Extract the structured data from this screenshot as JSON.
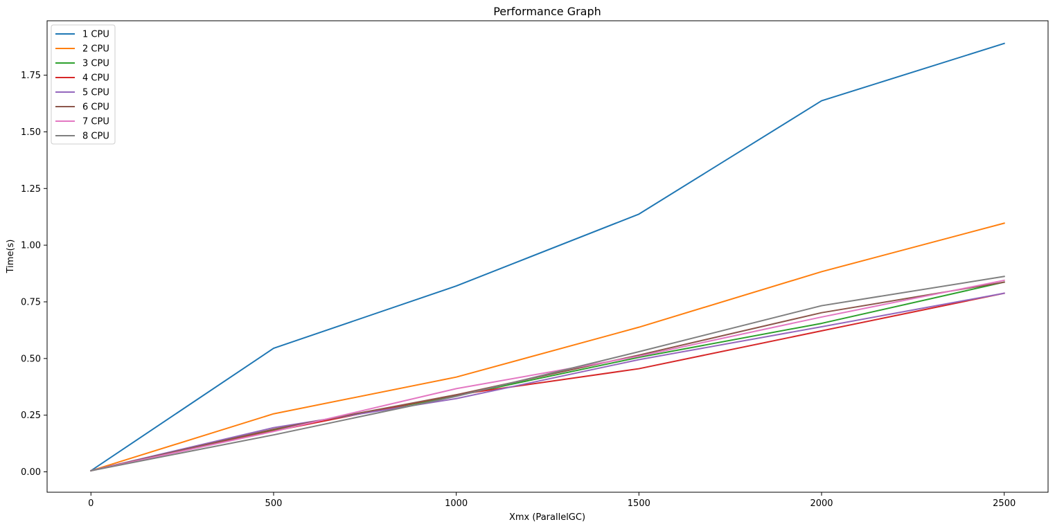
{
  "chart_data": {
    "type": "line",
    "title": "Performance Graph",
    "xlabel": "Xmx (ParallelGC)",
    "ylabel": "Time(s)",
    "x": [
      0,
      500,
      1000,
      1500,
      2000,
      2500
    ],
    "xticks": [
      0,
      500,
      1000,
      1500,
      2000,
      2500
    ],
    "yticks": [
      0.0,
      0.25,
      0.5,
      0.75,
      1.0,
      1.25,
      1.5,
      1.75
    ],
    "ytick_labels": [
      "0.00",
      "0.25",
      "0.50",
      "0.75",
      "1.00",
      "1.25",
      "1.50",
      "1.75"
    ],
    "xlim": [
      -120,
      2620
    ],
    "ylim": [
      -0.09,
      1.99
    ],
    "grid": false,
    "legend_position": "top-left",
    "series": [
      {
        "name": "1 CPU",
        "color": "#1f77b4",
        "values": [
          0.005,
          0.545,
          0.82,
          1.137,
          1.637,
          1.89
        ]
      },
      {
        "name": "2 CPU",
        "color": "#ff7f0e",
        "values": [
          0.005,
          0.256,
          0.418,
          0.638,
          0.883,
          1.097
        ]
      },
      {
        "name": "3 CPU",
        "color": "#2ca02c",
        "values": [
          0.005,
          0.185,
          0.335,
          0.505,
          0.655,
          0.837
        ]
      },
      {
        "name": "4 CPU",
        "color": "#d62728",
        "values": [
          0.005,
          0.18,
          0.34,
          0.455,
          0.622,
          0.788
        ]
      },
      {
        "name": "5 CPU",
        "color": "#9467bd",
        "values": [
          0.005,
          0.195,
          0.323,
          0.495,
          0.64,
          0.788
        ]
      },
      {
        "name": "6 CPU",
        "color": "#8c564b",
        "values": [
          0.005,
          0.188,
          0.34,
          0.515,
          0.702,
          0.837
        ]
      },
      {
        "name": "7 CPU",
        "color": "#e377c2",
        "values": [
          0.005,
          0.178,
          0.367,
          0.51,
          0.683,
          0.845
        ]
      },
      {
        "name": "8 CPU",
        "color": "#7f7f7f",
        "values": [
          0.005,
          0.163,
          0.333,
          0.53,
          0.733,
          0.862
        ]
      }
    ]
  }
}
